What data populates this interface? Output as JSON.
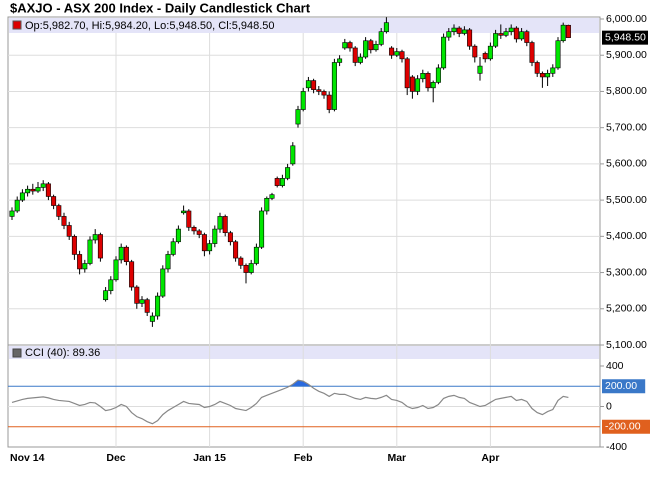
{
  "chart_data": [
    {
      "type": "candlestick",
      "title": "$AXJO - ASX 200 Index - Daily Candlestick Chart",
      "legend": "Op:5,982.70, Hi:5,984.20, Lo:5,948.50, Cl:5,948.50",
      "categories": [
        "Nov 14",
        null,
        null,
        null,
        null,
        null,
        null,
        null,
        null,
        null,
        null,
        null,
        null,
        null,
        null,
        null,
        null,
        null,
        null,
        null,
        "Dec",
        null,
        null,
        null,
        null,
        null,
        null,
        null,
        null,
        null,
        null,
        null,
        null,
        null,
        null,
        null,
        null,
        null,
        "Jan 15",
        null,
        null,
        null,
        null,
        null,
        null,
        null,
        null,
        null,
        null,
        null,
        null,
        null,
        null,
        null,
        null,
        null,
        "Feb",
        null,
        null,
        null,
        null,
        null,
        null,
        null,
        null,
        null,
        null,
        null,
        null,
        null,
        null,
        null,
        null,
        null,
        "Mar",
        null,
        null,
        null,
        null,
        null,
        null,
        null,
        null,
        null,
        null,
        null,
        null,
        null,
        null,
        null,
        null,
        null,
        "Apr",
        null,
        null,
        null,
        null,
        null,
        null,
        null,
        null,
        null,
        null,
        null,
        null,
        null,
        null,
        null
      ],
      "ohlc": [
        [
          5455,
          5480,
          5445,
          5470
        ],
        [
          5470,
          5510,
          5465,
          5500
        ],
        [
          5500,
          5530,
          5495,
          5520
        ],
        [
          5520,
          5540,
          5510,
          5530
        ],
        [
          5530,
          5545,
          5515,
          5525
        ],
        [
          5525,
          5550,
          5520,
          5535
        ],
        [
          5535,
          5555,
          5525,
          5545
        ],
        [
          5545,
          5550,
          5500,
          5510
        ],
        [
          5510,
          5515,
          5475,
          5485
        ],
        [
          5485,
          5490,
          5445,
          5455
        ],
        [
          5455,
          5465,
          5420,
          5430
        ],
        [
          5430,
          5440,
          5390,
          5400
        ],
        [
          5400,
          5405,
          5335,
          5350
        ],
        [
          5350,
          5360,
          5295,
          5310
        ],
        [
          5310,
          5335,
          5300,
          5325
        ],
        [
          5325,
          5400,
          5320,
          5390
        ],
        [
          5390,
          5420,
          5380,
          5405
        ],
        [
          5405,
          5410,
          5330,
          5340
        ],
        [
          5225,
          5260,
          5220,
          5250
        ],
        [
          5250,
          5290,
          5240,
          5280
        ],
        [
          5280,
          5345,
          5275,
          5335
        ],
        [
          5335,
          5380,
          5325,
          5370
        ],
        [
          5370,
          5375,
          5320,
          5330
        ],
        [
          5330,
          5335,
          5250,
          5260
        ],
        [
          5260,
          5265,
          5200,
          5215
        ],
        [
          5215,
          5235,
          5205,
          5225
        ],
        [
          5225,
          5230,
          5180,
          5190
        ],
        [
          5165,
          5190,
          5150,
          5180
        ],
        [
          5180,
          5245,
          5170,
          5235
        ],
        [
          5235,
          5320,
          5230,
          5310
        ],
        [
          5310,
          5360,
          5300,
          5350
        ],
        [
          5350,
          5395,
          5345,
          5385
        ],
        [
          5385,
          5430,
          5380,
          5420
        ],
        [
          5465,
          5485,
          5460,
          5470
        ],
        [
          5470,
          5475,
          5415,
          5425
        ],
        [
          5425,
          5430,
          5405,
          5415
        ],
        [
          5415,
          5420,
          5395,
          5405
        ],
        [
          5405,
          5410,
          5345,
          5360
        ],
        [
          5360,
          5390,
          5350,
          5380
        ],
        [
          5380,
          5430,
          5370,
          5420
        ],
        [
          5420,
          5465,
          5410,
          5455
        ],
        [
          5455,
          5460,
          5400,
          5410
        ],
        [
          5410,
          5415,
          5375,
          5385
        ],
        [
          5385,
          5390,
          5330,
          5340
        ],
        [
          5340,
          5345,
          5310,
          5320
        ],
        [
          5320,
          5325,
          5270,
          5300
        ],
        [
          5300,
          5335,
          5295,
          5325
        ],
        [
          5325,
          5380,
          5320,
          5370
        ],
        [
          5370,
          5480,
          5365,
          5470
        ],
        [
          5470,
          5510,
          5460,
          5505
        ],
        [
          5505,
          5520,
          5500,
          5515
        ],
        [
          5560,
          5565,
          5535,
          5540
        ],
        [
          5540,
          5570,
          5535,
          5560
        ],
        [
          5560,
          5600,
          5555,
          5590
        ],
        [
          5600,
          5660,
          5595,
          5650
        ],
        [
          5710,
          5760,
          5700,
          5750
        ],
        [
          5750,
          5810,
          5745,
          5800
        ],
        [
          5810,
          5840,
          5800,
          5830
        ],
        [
          5830,
          5835,
          5795,
          5805
        ],
        [
          5805,
          5815,
          5790,
          5800
        ],
        [
          5800,
          5805,
          5780,
          5790
        ],
        [
          5790,
          5800,
          5740,
          5750
        ],
        [
          5750,
          5890,
          5745,
          5880
        ],
        [
          5880,
          5900,
          5870,
          5890
        ],
        [
          5920,
          5945,
          5915,
          5935
        ],
        [
          5935,
          5940,
          5910,
          5920
        ],
        [
          5920,
          5925,
          5870,
          5880
        ],
        [
          5880,
          5905,
          5875,
          5895
        ],
        [
          5895,
          5950,
          5890,
          5940
        ],
        [
          5940,
          5945,
          5905,
          5915
        ],
        [
          5915,
          5940,
          5910,
          5930
        ],
        [
          5930,
          5975,
          5925,
          5965
        ],
        [
          5965,
          6005,
          5960,
          5990
        ],
        [
          5920,
          5925,
          5890,
          5900
        ],
        [
          5900,
          5920,
          5895,
          5910
        ],
        [
          5910,
          5915,
          5880,
          5890
        ],
        [
          5890,
          5895,
          5790,
          5810
        ],
        [
          5840,
          5845,
          5780,
          5800
        ],
        [
          5800,
          5845,
          5790,
          5835
        ],
        [
          5835,
          5860,
          5825,
          5850
        ],
        [
          5850,
          5855,
          5800,
          5810
        ],
        [
          5810,
          5830,
          5770,
          5825
        ],
        [
          5825,
          5875,
          5820,
          5865
        ],
        [
          5865,
          5960,
          5860,
          5950
        ],
        [
          5950,
          5975,
          5940,
          5965
        ],
        [
          5965,
          5985,
          5955,
          5975
        ],
        [
          5975,
          5980,
          5950,
          5960
        ],
        [
          5960,
          5980,
          5955,
          5970
        ],
        [
          5970,
          5975,
          5915,
          5925
        ],
        [
          5925,
          5930,
          5880,
          5895
        ],
        [
          5850,
          5895,
          5830,
          5870
        ],
        [
          5905,
          5910,
          5880,
          5890
        ],
        [
          5890,
          5935,
          5885,
          5925
        ],
        [
          5925,
          5970,
          5920,
          5960
        ],
        [
          5960,
          5985,
          5945,
          5955
        ],
        [
          5955,
          5975,
          5950,
          5965
        ],
        [
          5965,
          5985,
          5955,
          5975
        ],
        [
          5975,
          5980,
          5935,
          5945
        ],
        [
          5945,
          5975,
          5940,
          5965
        ],
        [
          5965,
          5970,
          5925,
          5935
        ],
        [
          5935,
          5940,
          5870,
          5880
        ],
        [
          5880,
          5885,
          5840,
          5850
        ],
        [
          5850,
          5855,
          5810,
          5840
        ],
        [
          5840,
          5860,
          5815,
          5850
        ],
        [
          5850,
          5875,
          5840,
          5865
        ],
        [
          5865,
          5950,
          5860,
          5940
        ],
        [
          5940,
          5990,
          5935,
          5983
        ],
        [
          5982.7,
          5984.2,
          5948.5,
          5948.5
        ]
      ],
      "up_color": "#00e600",
      "down_color": "#dd0000",
      "ylim": [
        5100,
        6000
      ],
      "yticks": [
        {
          "value": 6000,
          "label": "6,000.00"
        },
        {
          "value": 5900,
          "label": "5,900.00"
        },
        {
          "value": 5800,
          "label": "5,800.00"
        },
        {
          "value": 5700,
          "label": "5,700.00"
        },
        {
          "value": 5600,
          "label": "5,600.00"
        },
        {
          "value": 5500,
          "label": "5,500.00"
        },
        {
          "value": 5400,
          "label": "5,400.00"
        },
        {
          "value": 5300,
          "label": "5,300.00"
        },
        {
          "value": 5200,
          "label": "5,200.00"
        },
        {
          "value": 5100,
          "label": "5,100.00"
        }
      ],
      "last": {
        "value": 5948.5,
        "label": "5,948.50"
      },
      "grid": true
    },
    {
      "type": "line",
      "legend": "CCI (40): 89.36",
      "values": [
        40,
        55,
        70,
        80,
        85,
        90,
        95,
        85,
        70,
        60,
        55,
        50,
        30,
        10,
        20,
        40,
        35,
        0,
        -40,
        -30,
        -10,
        20,
        0,
        -60,
        -100,
        -120,
        -150,
        -170,
        -140,
        -80,
        -40,
        -10,
        20,
        50,
        30,
        25,
        20,
        -10,
        0,
        20,
        50,
        30,
        10,
        -20,
        -30,
        -40,
        -10,
        30,
        90,
        110,
        130,
        150,
        170,
        190,
        220,
        260,
        250,
        220,
        180,
        150,
        130,
        100,
        130,
        120,
        120,
        100,
        80,
        70,
        90,
        80,
        75,
        90,
        110,
        70,
        60,
        40,
        0,
        -20,
        -10,
        10,
        -20,
        -10,
        20,
        80,
        100,
        110,
        90,
        80,
        40,
        20,
        0,
        10,
        40,
        70,
        80,
        90,
        100,
        60,
        70,
        50,
        -20,
        -60,
        -80,
        -50,
        -30,
        60,
        100,
        89.36
      ],
      "color": "#888888",
      "ylim": [
        -400,
        400
      ],
      "yticks": [
        400,
        0,
        -400
      ],
      "reference_lines": [
        {
          "value": 200,
          "label": "200.00",
          "color": "#3a78c8",
          "fill": "#2a6ae0"
        },
        {
          "value": -200,
          "label": "-200.00",
          "color": "#e0601e"
        }
      ],
      "grid": true
    }
  ]
}
